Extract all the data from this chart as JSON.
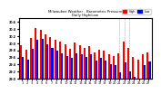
{
  "title": "Milwaukee Weather - Barometric Pressure Daily High/Low",
  "high_color": "#ff0000",
  "low_color": "#0000ff",
  "background_color": "#ffffff",
  "ylabel_right": true,
  "dashed_lines_at": [
    21,
    22,
    23
  ],
  "ylim": [
    29.0,
    30.7
  ],
  "yticks": [
    29.0,
    29.2,
    29.4,
    29.6,
    29.8,
    30.0,
    30.2,
    30.4,
    30.6
  ],
  "days": [
    1,
    2,
    3,
    4,
    5,
    6,
    7,
    8,
    9,
    10,
    11,
    12,
    13,
    14,
    15,
    16,
    17,
    18,
    19,
    20,
    21,
    22,
    23,
    24,
    25,
    26,
    27
  ],
  "highs": [
    29.95,
    29.82,
    30.15,
    30.42,
    30.38,
    30.25,
    30.18,
    30.1,
    30.05,
    29.98,
    29.85,
    30.02,
    29.95,
    29.88,
    29.92,
    29.75,
    29.82,
    29.78,
    29.7,
    29.65,
    29.72,
    30.05,
    29.88,
    29.62,
    29.55,
    29.68,
    29.75
  ],
  "lows": [
    29.62,
    29.55,
    29.85,
    30.1,
    30.12,
    29.98,
    29.88,
    29.8,
    29.72,
    29.65,
    29.58,
    29.72,
    29.68,
    29.62,
    29.7,
    29.52,
    29.58,
    29.52,
    29.42,
    29.38,
    29.18,
    29.45,
    29.22,
    29.05,
    28.95,
    29.38,
    29.48
  ]
}
